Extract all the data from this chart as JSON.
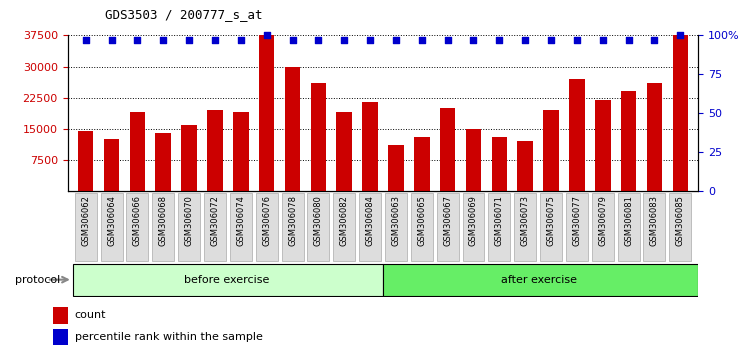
{
  "title": "GDS3503 / 200777_s_at",
  "categories": [
    "GSM306062",
    "GSM306064",
    "GSM306066",
    "GSM306068",
    "GSM306070",
    "GSM306072",
    "GSM306074",
    "GSM306076",
    "GSM306078",
    "GSM306080",
    "GSM306082",
    "GSM306084",
    "GSM306063",
    "GSM306065",
    "GSM306067",
    "GSM306069",
    "GSM306071",
    "GSM306073",
    "GSM306075",
    "GSM306077",
    "GSM306079",
    "GSM306081",
    "GSM306083",
    "GSM306085"
  ],
  "counts": [
    14500,
    12500,
    19000,
    14000,
    16000,
    19500,
    19000,
    37500,
    30000,
    26000,
    19000,
    21500,
    11000,
    13000,
    20000,
    15000,
    13000,
    12000,
    19500,
    27000,
    22000,
    24000,
    26000,
    37500
  ],
  "percentile_ranks": [
    97,
    97,
    97,
    97,
    97,
    97,
    97,
    100,
    97,
    97,
    97,
    97,
    97,
    97,
    97,
    97,
    97,
    97,
    97,
    97,
    97,
    97,
    97,
    100
  ],
  "group_labels": [
    "before exercise",
    "after exercise"
  ],
  "group_splits": [
    12,
    12
  ],
  "before_color": "#CCFFCC",
  "after_color": "#66EE66",
  "bar_color": "#CC0000",
  "percentile_color": "#0000CC",
  "ylim_left": [
    0,
    37500
  ],
  "ylim_right": [
    0,
    100
  ],
  "yticks_left": [
    7500,
    15000,
    22500,
    30000,
    37500
  ],
  "yticks_right": [
    0,
    25,
    50,
    75,
    100
  ],
  "ytick_labels_right": [
    "0",
    "25",
    "50",
    "75",
    "100%"
  ],
  "legend_items": [
    "count",
    "percentile rank within the sample"
  ],
  "legend_colors": [
    "#CC0000",
    "#0000CC"
  ],
  "protocol_arrow_color": "#888888"
}
